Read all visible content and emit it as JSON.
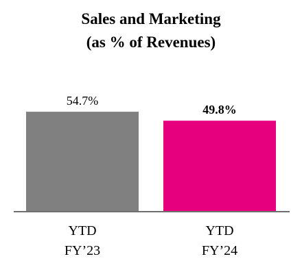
{
  "chart_data": {
    "type": "bar",
    "title_lines": [
      "Sales and Marketing",
      "(as % of Revenues)"
    ],
    "categories": [
      [
        "YTD",
        "FY’23"
      ],
      [
        "YTD",
        "FY’24"
      ]
    ],
    "values": [
      54.7,
      49.8
    ],
    "value_labels": [
      "54.7%",
      "49.8%"
    ],
    "value_label_bold": [
      false,
      true
    ],
    "colors": [
      "#808080",
      "#e6007e"
    ],
    "axis_color": "#6e6e6e",
    "ylim": [
      0,
      60
    ],
    "grid": false,
    "legend": "none"
  }
}
